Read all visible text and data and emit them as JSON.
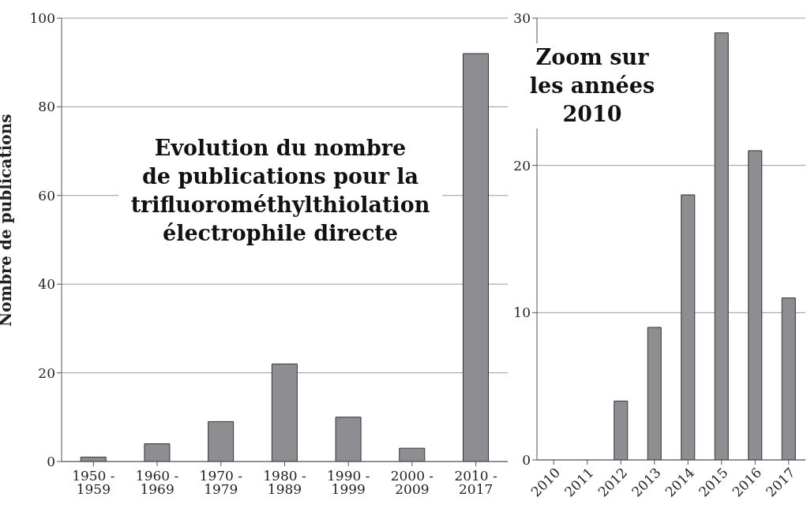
{
  "chart_data": [
    {
      "type": "bar",
      "title": "Evolution du nombre\nde publications pour la\ntrifluorométhylthiolation\nélectrophile directe",
      "ylabel": "Nombre de publications",
      "categories": [
        "1950 - 1959",
        "1960 - 1969",
        "1970 - 1979",
        "1980 - 1989",
        "1990 - 1999",
        "2000 - 2009",
        "2010 - 2017"
      ],
      "values": [
        1,
        4,
        9,
        22,
        10,
        3,
        92
      ],
      "color": "#8e8e92",
      "ylim": [
        0,
        100
      ],
      "yticks": [
        0,
        20,
        40,
        60,
        80,
        100
      ],
      "grid": "y"
    },
    {
      "type": "bar",
      "title": "Zoom sur\nles années\n2010",
      "categories": [
        "2010",
        "2011",
        "2012",
        "2013",
        "2014",
        "2015",
        "2016",
        "2017"
      ],
      "values": [
        0,
        0,
        4,
        9,
        18,
        29,
        21,
        11
      ],
      "color": "#8e8e92",
      "ylim": [
        0,
        30
      ],
      "yticks": [
        0,
        10,
        20,
        30
      ],
      "grid": "y"
    }
  ]
}
